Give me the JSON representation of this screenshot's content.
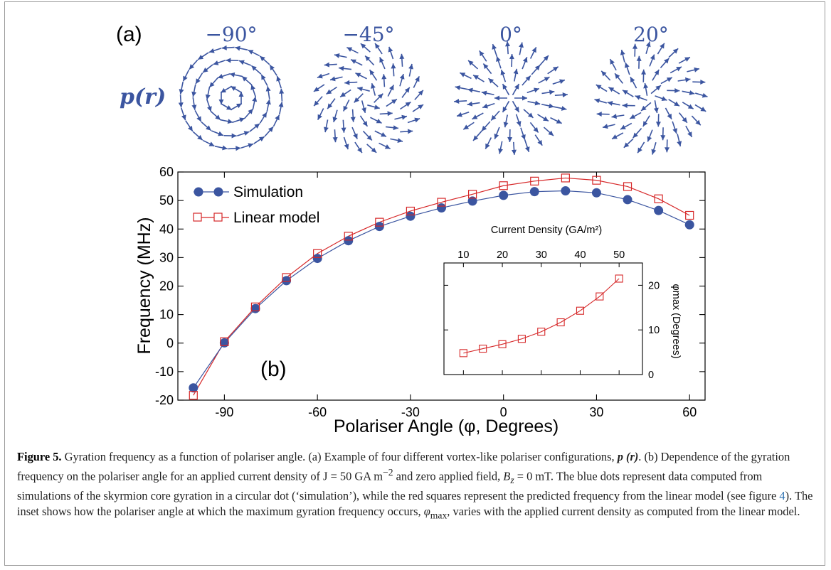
{
  "panel_a": {
    "label": "(a)",
    "row_label": "p(r)",
    "angles": [
      {
        "label": "−90°",
        "value": -90
      },
      {
        "label": "−45°",
        "value": -45
      },
      {
        "label": "0°",
        "value": 0
      },
      {
        "label": "20°",
        "value": 20
      }
    ],
    "arrow_color": "#3b55a0"
  },
  "colors": {
    "simulation": "#3b55a0",
    "linear": "#d62728",
    "axis": "#000000"
  },
  "chart_data": [
    {
      "type": "line",
      "panel_label": "(b)",
      "xlabel": "Polariser Angle (φ, Degrees)",
      "ylabel": "Frequency (MHz)",
      "xlim": [
        -105,
        65
      ],
      "ylim": [
        -20,
        60
      ],
      "xticks": [
        -90,
        -60,
        -30,
        0,
        30,
        60
      ],
      "yticks": [
        -20,
        -10,
        0,
        10,
        20,
        30,
        40,
        50,
        60
      ],
      "grid": false,
      "legend": "top-left",
      "x": [
        -100,
        -90,
        -80,
        -70,
        -60,
        -50,
        -40,
        -30,
        -20,
        -10,
        0,
        10,
        20,
        30,
        40,
        50,
        60
      ],
      "series": [
        {
          "name": "Simulation",
          "marker": "filled-circle",
          "values": [
            -15.7,
            0.1,
            12.1,
            21.9,
            29.7,
            35.9,
            40.9,
            44.5,
            47.4,
            49.8,
            51.8,
            53.1,
            53.4,
            52.7,
            50.3,
            46.5,
            41.5
          ]
        },
        {
          "name": "Linear model",
          "marker": "open-square",
          "values": [
            -18.3,
            0.5,
            12.7,
            23.0,
            31.4,
            37.5,
            42.4,
            46.3,
            49.4,
            52.2,
            55.2,
            56.8,
            57.9,
            57.1,
            54.9,
            50.6,
            44.8
          ]
        }
      ]
    },
    {
      "type": "line",
      "panel_label": "inset",
      "xlabel": "Current Density (GA/m²)",
      "ylabel": "φmax (Degrees)",
      "xlim": [
        5,
        56
      ],
      "ylim": [
        0,
        25
      ],
      "xticks": [
        10,
        20,
        30,
        40,
        50
      ],
      "yticks": [
        0,
        10,
        20
      ],
      "x_axis_position": "top",
      "y_axis_position": "right",
      "x": [
        10,
        15,
        20,
        25,
        30,
        35,
        40,
        45,
        50
      ],
      "series": [
        {
          "name": "",
          "marker": "open-square",
          "values": [
            4.8,
            5.8,
            6.8,
            8.0,
            9.6,
            11.7,
            14.3,
            17.5,
            21.5
          ]
        }
      ]
    }
  ],
  "caption": {
    "label": "Figure 5.",
    "text1": " Gyration frequency as a function of polariser angle. (a) Example of four different vortex-like polariser configurations, ",
    "math_p": "p (r)",
    "text2": ". (b) Dependence of the gyration frequency on the polariser angle for an applied current density of ",
    "math_j": "J = 50 GA m",
    "math_j_exp": "−2",
    "text3": " and zero applied field, ",
    "math_bz": "B",
    "math_bz_sub": "z",
    "math_bz_val": " = 0 mT",
    "text4": ". The blue dots represent data computed from simulations of the skyrmion core gyration in a circular dot (‘simulation’), while the red squares represent the predicted frequency from the linear model (see figure ",
    "fig_ref": "4",
    "text5": "). The inset shows how the polariser angle at which the maximum gyration frequency occurs, ",
    "math_phi": "φ",
    "math_phi_sub": "max",
    "text6": ", varies with the applied current density as computed from the linear model."
  }
}
